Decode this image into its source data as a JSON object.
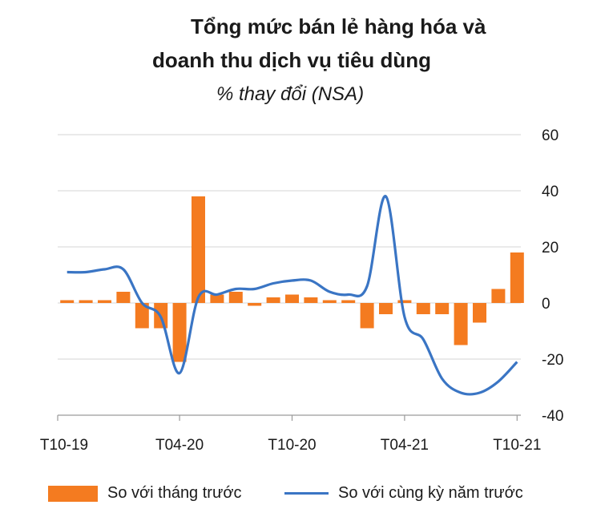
{
  "chart_data": {
    "type": "bar+line",
    "title_line1": "Tổng mức bán lẻ hàng hóa và",
    "title_line2": "doanh thu dịch vụ tiêu dùng",
    "subtitle": "% thay đổi (NSA)",
    "x_tick_labels": [
      "T10-19",
      "T04-20",
      "T10-20",
      "T04-21",
      "T10-21"
    ],
    "y_tick_labels": [
      "60",
      "40",
      "20",
      "0",
      "-20",
      "-40"
    ],
    "ylim": [
      -40,
      60
    ],
    "grid": true,
    "legend_position": "bottom",
    "categories": [
      "T10-19",
      "T11-19",
      "T12-19",
      "T01-20",
      "T02-20",
      "T03-20",
      "T04-20",
      "T05-20",
      "T06-20",
      "T07-20",
      "T08-20",
      "T09-20",
      "T10-20",
      "T11-20",
      "T12-20",
      "T01-21",
      "T02-21",
      "T03-21",
      "T04-21",
      "T05-21",
      "T06-21",
      "T07-21",
      "T08-21",
      "T09-21",
      "T10-21"
    ],
    "series": [
      {
        "name": "So với tháng trước",
        "type": "bar",
        "color": "#f47b20",
        "values": [
          1,
          1,
          1,
          4,
          -9,
          -9,
          -21,
          38,
          3,
          4,
          -1,
          2,
          3,
          2,
          1,
          1,
          -9,
          -4,
          1,
          -4,
          -4,
          -15,
          -7,
          5,
          18
        ]
      },
      {
        "name": "So với cùng kỳ năm trước",
        "type": "line",
        "color": "#3a75c4",
        "values": [
          11,
          11,
          12,
          12,
          0,
          -5,
          -25,
          2,
          3,
          5,
          5,
          7,
          8,
          8,
          4,
          3,
          6,
          38,
          -5,
          -13,
          -27,
          -32,
          -32,
          -28,
          -21
        ]
      }
    ]
  }
}
